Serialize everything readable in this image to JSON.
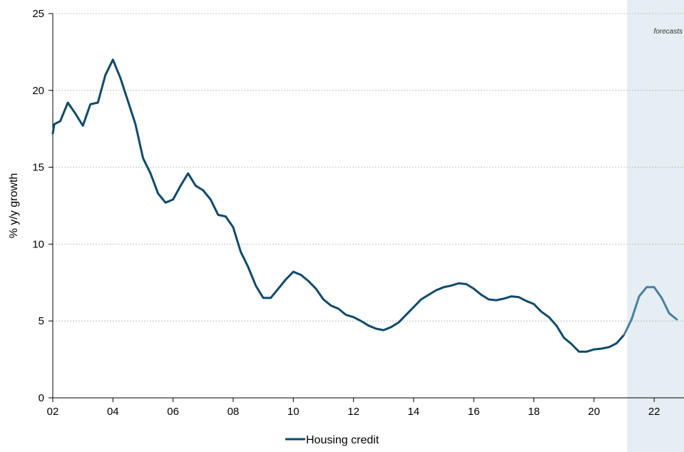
{
  "chart_data": {
    "type": "line",
    "ylabel": "% y/y growth",
    "ylim": [
      0,
      25
    ],
    "yticks": [
      0,
      5,
      10,
      15,
      20,
      25
    ],
    "xlim": [
      2002.0,
      2022.85
    ],
    "xticks": [
      {
        "value": 2002,
        "label": "02"
      },
      {
        "value": 2004,
        "label": "04"
      },
      {
        "value": 2006,
        "label": "06"
      },
      {
        "value": 2008,
        "label": "08"
      },
      {
        "value": 2010,
        "label": "10"
      },
      {
        "value": 2012,
        "label": "12"
      },
      {
        "value": 2014,
        "label": "14"
      },
      {
        "value": 2016,
        "label": "16"
      },
      {
        "value": 2018,
        "label": "18"
      },
      {
        "value": 2020,
        "label": "20"
      },
      {
        "value": 2022,
        "label": "22"
      }
    ],
    "grid": "horizontal",
    "forecast": {
      "start": 2021.1,
      "end": 2022.85,
      "label": "forecasts",
      "shade_color": "#e4eef3"
    },
    "legend_position": "bottom",
    "series": [
      {
        "name": "Housing credit",
        "color": "#0f4a6b",
        "forecast_color": "#4a7f9e",
        "x": [
          2002.0,
          2002.05,
          2002.25,
          2002.5,
          2002.75,
          2003.0,
          2003.25,
          2003.5,
          2003.75,
          2004.0,
          2004.25,
          2004.5,
          2004.75,
          2005.0,
          2005.25,
          2005.5,
          2005.75,
          2006.0,
          2006.25,
          2006.5,
          2006.75,
          2007.0,
          2007.25,
          2007.5,
          2007.75,
          2008.0,
          2008.25,
          2008.5,
          2008.75,
          2009.0,
          2009.25,
          2009.5,
          2009.75,
          2010.0,
          2010.25,
          2010.5,
          2010.75,
          2011.0,
          2011.25,
          2011.5,
          2011.75,
          2012.0,
          2012.25,
          2012.5,
          2012.75,
          2013.0,
          2013.25,
          2013.5,
          2013.75,
          2014.0,
          2014.25,
          2014.5,
          2014.75,
          2015.0,
          2015.25,
          2015.5,
          2015.75,
          2016.0,
          2016.25,
          2016.5,
          2016.75,
          2017.0,
          2017.25,
          2017.5,
          2017.75,
          2018.0,
          2018.25,
          2018.5,
          2018.75,
          2019.0,
          2019.25,
          2019.5,
          2019.75,
          2020.0,
          2020.25,
          2020.5,
          2020.75,
          2021.0,
          2021.25,
          2021.5,
          2021.75,
          2022.0,
          2022.25,
          2022.5,
          2022.75
        ],
        "values": [
          17.2,
          17.8,
          18.0,
          19.2,
          18.5,
          17.7,
          19.1,
          19.2,
          21.0,
          22.0,
          20.8,
          19.3,
          17.8,
          15.6,
          14.6,
          13.3,
          12.7,
          12.9,
          13.8,
          14.6,
          13.8,
          13.5,
          12.9,
          11.9,
          11.8,
          11.1,
          9.5,
          8.5,
          7.3,
          6.5,
          6.5,
          7.1,
          7.7,
          8.2,
          8.0,
          7.6,
          7.1,
          6.4,
          6.0,
          5.8,
          5.4,
          5.25,
          5.0,
          4.7,
          4.5,
          4.4,
          4.6,
          4.9,
          5.4,
          5.9,
          6.4,
          6.7,
          7.0,
          7.2,
          7.3,
          7.45,
          7.4,
          7.1,
          6.7,
          6.4,
          6.35,
          6.45,
          6.6,
          6.55,
          6.3,
          6.1,
          5.6,
          5.25,
          4.7,
          3.9,
          3.5,
          3.0,
          3.0,
          3.15,
          3.2,
          3.3,
          3.55,
          4.1,
          5.1,
          6.6,
          7.2,
          7.2,
          6.5,
          5.5,
          5.1
        ]
      }
    ]
  }
}
